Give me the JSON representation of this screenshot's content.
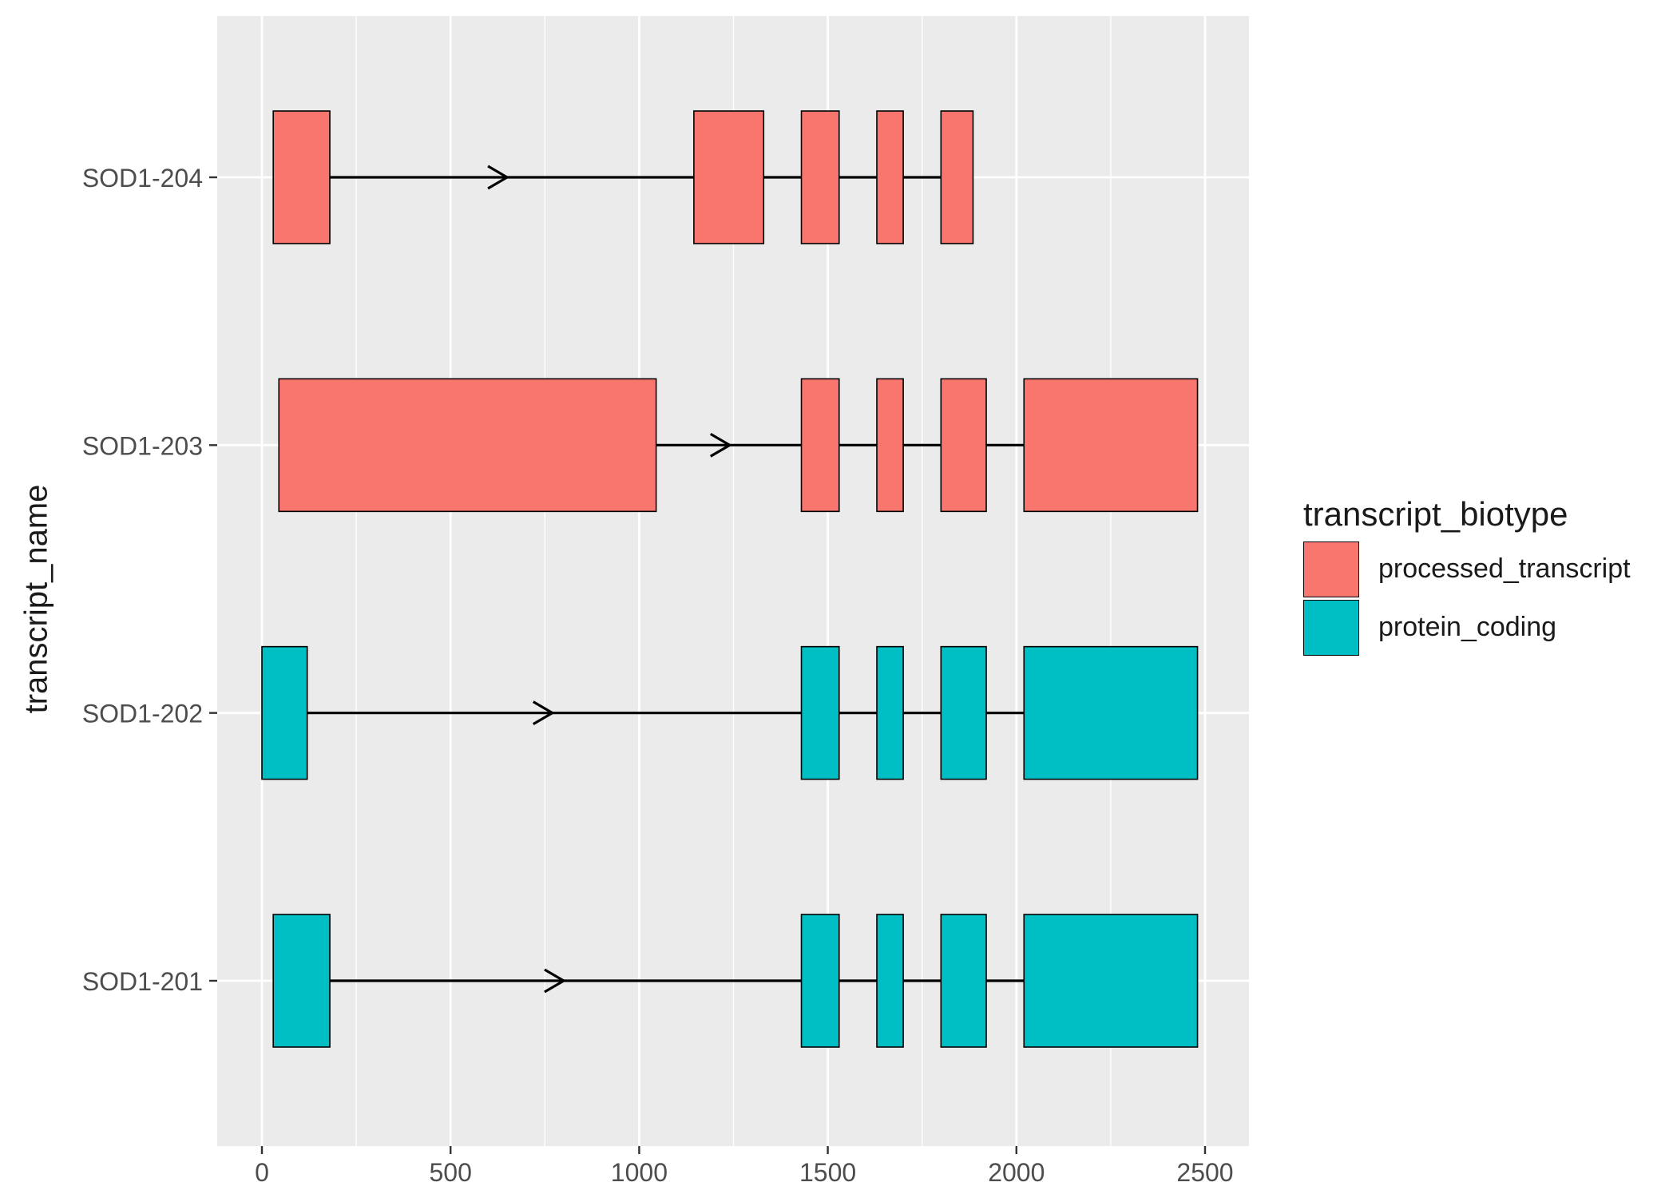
{
  "chart_data": {
    "type": "gantt",
    "title": "",
    "xlabel": "",
    "ylabel": "transcript_name",
    "xlim": [
      -120,
      2590
    ],
    "x_ticks": [
      0,
      500,
      1000,
      1500,
      2000,
      2500
    ],
    "grid": true,
    "legend": {
      "title": "transcript_biotype",
      "position": "right",
      "entries": [
        {
          "name": "processed_transcript",
          "color": "#F8766D"
        },
        {
          "name": "protein_coding",
          "color": "#00BFC4"
        }
      ]
    },
    "transcripts": [
      {
        "name": "SOD1-204",
        "biotype": "processed_transcript",
        "exons": [
          [
            30,
            180
          ],
          [
            1145,
            1330
          ],
          [
            1430,
            1530
          ],
          [
            1630,
            1700
          ],
          [
            1800,
            1885
          ]
        ],
        "arrow_at": 650
      },
      {
        "name": "SOD1-203",
        "biotype": "processed_transcript",
        "exons": [
          [
            45,
            1045
          ],
          [
            1430,
            1530
          ],
          [
            1630,
            1700
          ],
          [
            1800,
            1920
          ],
          [
            2020,
            2480
          ]
        ],
        "arrow_at": 1240
      },
      {
        "name": "SOD1-202",
        "biotype": "protein_coding",
        "exons": [
          [
            0,
            120
          ],
          [
            1430,
            1530
          ],
          [
            1630,
            1700
          ],
          [
            1800,
            1920
          ],
          [
            2020,
            2480
          ]
        ],
        "arrow_at": 770
      },
      {
        "name": "SOD1-201",
        "biotype": "protein_coding",
        "exons": [
          [
            30,
            180
          ],
          [
            1430,
            1530
          ],
          [
            1630,
            1700
          ],
          [
            1800,
            1920
          ],
          [
            2020,
            2480
          ]
        ],
        "arrow_at": 800
      }
    ]
  }
}
